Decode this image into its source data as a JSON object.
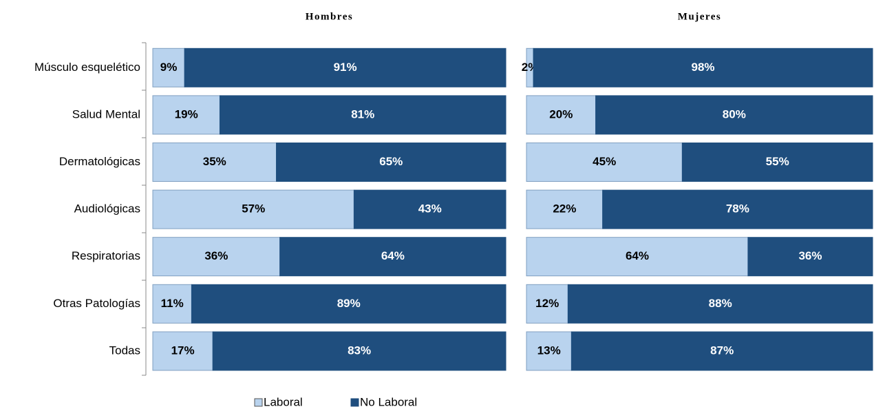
{
  "chart_data": [
    {
      "type": "bar",
      "orientation": "horizontal",
      "stacked": true,
      "title": "Hombres",
      "categories": [
        "Músculo esquelético",
        "Salud Mental",
        "Dermatológicas",
        "Audiológicas",
        "Respiratorias",
        "Otras Patologías",
        "Todas"
      ],
      "xlim": [
        0,
        100
      ],
      "series": [
        {
          "name": "Laboral",
          "color": "#b9d3ee",
          "values": [
            9,
            19,
            35,
            57,
            36,
            11,
            17
          ],
          "value_labels": [
            "9%",
            "19%",
            "35%",
            "57%",
            "36%",
            "11%",
            "17%"
          ]
        },
        {
          "name": "No Laboral",
          "color": "#1f4e7e",
          "values": [
            91,
            81,
            65,
            43,
            64,
            89,
            83
          ],
          "value_labels": [
            "91%",
            "81%",
            "65%",
            "43%",
            "64%",
            "89%",
            "83%"
          ]
        }
      ]
    },
    {
      "type": "bar",
      "orientation": "horizontal",
      "stacked": true,
      "title": "Mujeres",
      "xlim": [
        0,
        100
      ],
      "series": [
        {
          "name": "Laboral",
          "color": "#b9d3ee",
          "values": [
            2,
            20,
            45,
            22,
            64,
            12,
            13
          ],
          "value_labels": [
            "2%",
            "20%",
            "45%",
            "22%",
            "64%",
            "12%",
            "13%"
          ]
        },
        {
          "name": "No Laboral",
          "color": "#1f4e7e",
          "values": [
            98,
            80,
            55,
            78,
            36,
            88,
            87
          ],
          "value_labels": [
            "98%",
            "80%",
            "55%",
            "78%",
            "36%",
            "88%",
            "87%"
          ]
        }
      ]
    }
  ]
}
